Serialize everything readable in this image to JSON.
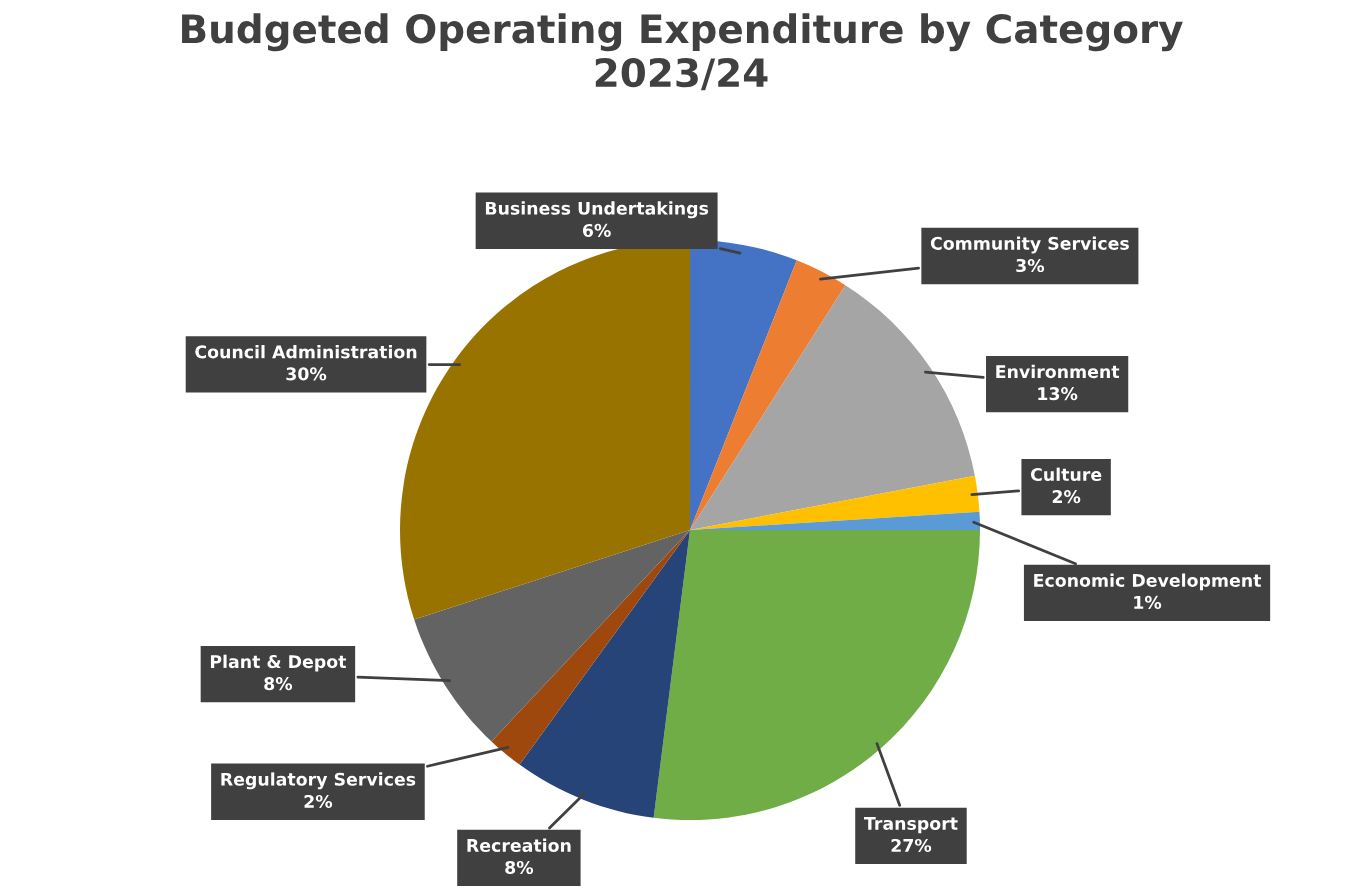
{
  "chart_data": {
    "type": "pie",
    "title": "Budgeted Operating Expenditure by Category 2023/24",
    "categories": [
      "Business Undertakings",
      "Community Services",
      "Environment",
      "Culture",
      "Economic Development",
      "Transport",
      "Recreation",
      "Regulatory Services",
      "Plant & Depot",
      "Council Administration"
    ],
    "values": [
      6,
      3,
      13,
      2,
      1,
      27,
      8,
      2,
      8,
      30
    ],
    "value_labels": [
      "6%",
      "3%",
      "13%",
      "2%",
      "1%",
      "27%",
      "8%",
      "2%",
      "8%",
      "30%"
    ],
    "colors": [
      "#4472c4",
      "#ed7d31",
      "#a5a5a5",
      "#ffc000",
      "#5b9bd5",
      "#70ad47",
      "#264478",
      "#9e480e",
      "#636363",
      "#997300"
    ],
    "legend": false
  }
}
